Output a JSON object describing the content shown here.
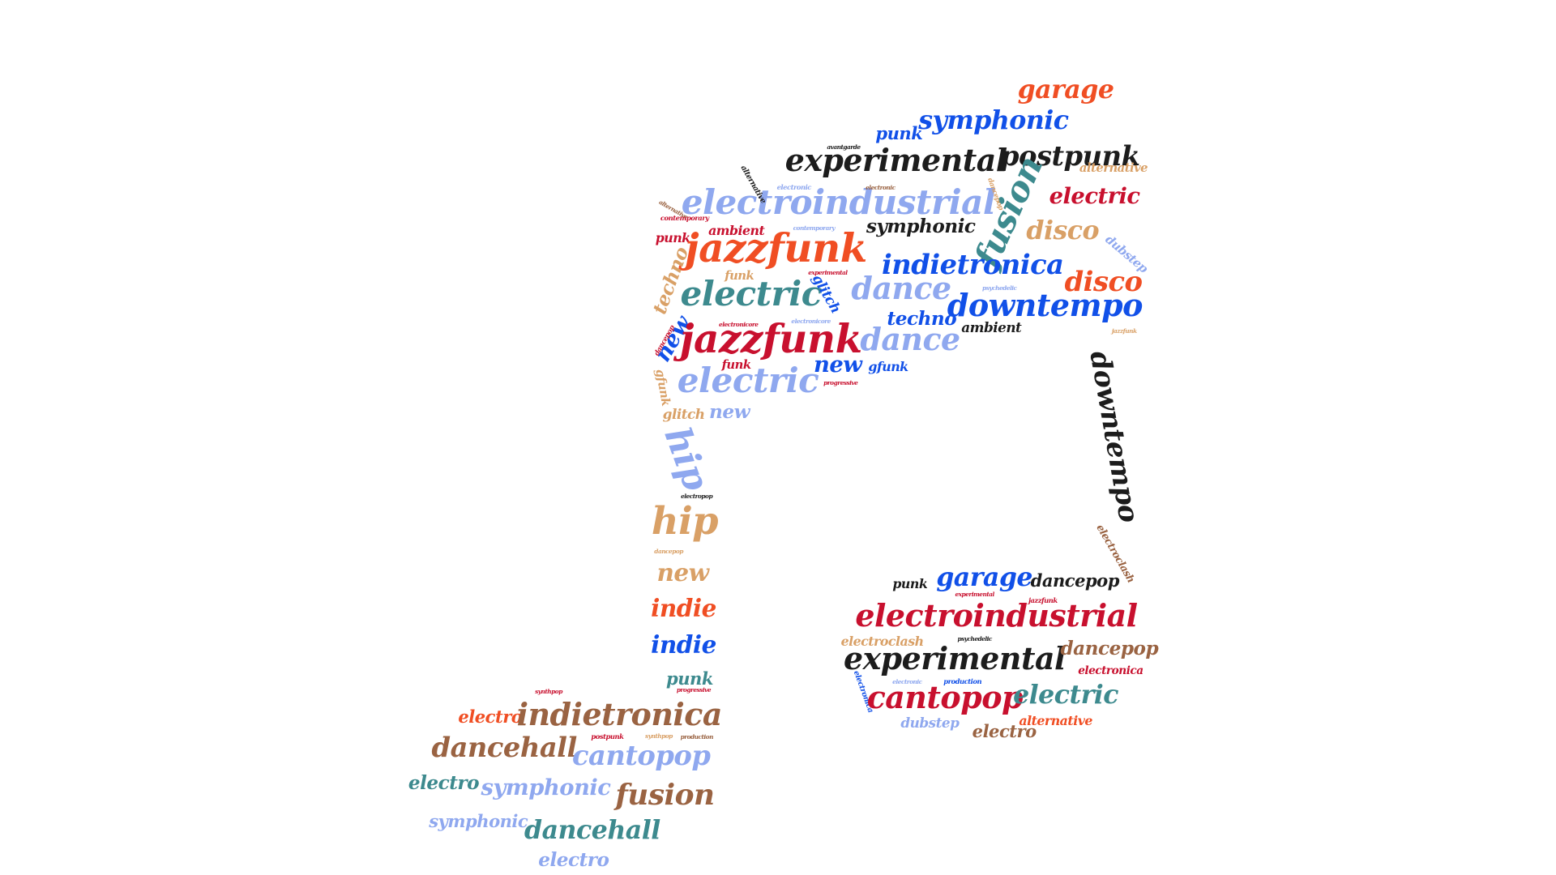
{
  "colors": {
    "red": "#c8102e",
    "orange": "#f04e23",
    "blue": "#1150e8",
    "lightblue": "#8fa8ef",
    "teal": "#3d8a8e",
    "tan": "#d9a066",
    "brown": "#9a6342",
    "black": "#1c1c1c"
  },
  "words": [
    {
      "text": "garage",
      "color": "orange"
    },
    {
      "text": "symphonic",
      "color": "blue"
    },
    {
      "text": "punk",
      "color": "blue"
    },
    {
      "text": "avantgarde",
      "color": "black"
    },
    {
      "text": "postpunk",
      "color": "black"
    },
    {
      "text": "experimental",
      "color": "black"
    },
    {
      "text": "alternative",
      "color": "tan"
    },
    {
      "text": "electric",
      "color": "red"
    },
    {
      "text": "fusion",
      "color": "teal"
    },
    {
      "text": "electroindustrial",
      "color": "lightblue"
    },
    {
      "text": "alternative",
      "color": "black"
    },
    {
      "text": "electronic",
      "color": "lightblue"
    },
    {
      "text": "electronic",
      "color": "brown"
    },
    {
      "text": "dancepop",
      "color": "tan"
    },
    {
      "text": "alternative",
      "color": "brown"
    },
    {
      "text": "contemporary",
      "color": "red"
    },
    {
      "text": "punk",
      "color": "red"
    },
    {
      "text": "ambient",
      "color": "red"
    },
    {
      "text": "contemporary",
      "color": "lightblue"
    },
    {
      "text": "symphonic",
      "color": "black"
    },
    {
      "text": "disco",
      "color": "tan"
    },
    {
      "text": "dubstep",
      "color": "lightblue"
    },
    {
      "text": "jazzfunk",
      "color": "orange"
    },
    {
      "text": "indietronica",
      "color": "blue"
    },
    {
      "text": "techno",
      "color": "tan"
    },
    {
      "text": "funk",
      "color": "tan"
    },
    {
      "text": "experimental",
      "color": "red"
    },
    {
      "text": "electric",
      "color": "teal"
    },
    {
      "text": "glitch",
      "color": "blue"
    },
    {
      "text": "dance",
      "color": "lightblue"
    },
    {
      "text": "disco",
      "color": "orange"
    },
    {
      "text": "psychedelic",
      "color": "lightblue"
    },
    {
      "text": "downtempo",
      "color": "blue"
    },
    {
      "text": "new",
      "color": "blue"
    },
    {
      "text": "dancepop",
      "color": "red"
    },
    {
      "text": "electronicore",
      "color": "red"
    },
    {
      "text": "electronicore",
      "color": "lightblue"
    },
    {
      "text": "techno",
      "color": "blue"
    },
    {
      "text": "ambient",
      "color": "black"
    },
    {
      "text": "jazzfunk",
      "color": "red"
    },
    {
      "text": "dance",
      "color": "lightblue"
    },
    {
      "text": "jazzfunk",
      "color": "tan"
    },
    {
      "text": "downtempo",
      "color": "black"
    },
    {
      "text": "new",
      "color": "blue"
    },
    {
      "text": "gfunk",
      "color": "blue"
    },
    {
      "text": "funk",
      "color": "red"
    },
    {
      "text": "gfunk",
      "color": "tan"
    },
    {
      "text": "electric",
      "color": "lightblue"
    },
    {
      "text": "progressive",
      "color": "red"
    },
    {
      "text": "glitch",
      "color": "tan"
    },
    {
      "text": "new",
      "color": "lightblue"
    },
    {
      "text": "hip",
      "color": "lightblue"
    },
    {
      "text": "electropop",
      "color": "black"
    },
    {
      "text": "hip",
      "color": "tan"
    },
    {
      "text": "dancepop",
      "color": "tan"
    },
    {
      "text": "electroclash",
      "color": "brown"
    },
    {
      "text": "new",
      "color": "tan"
    },
    {
      "text": "punk",
      "color": "black"
    },
    {
      "text": "garage",
      "color": "blue"
    },
    {
      "text": "dancepop",
      "color": "black"
    },
    {
      "text": "indie",
      "color": "orange"
    },
    {
      "text": "experimental",
      "color": "red"
    },
    {
      "text": "jazzfunk",
      "color": "red"
    },
    {
      "text": "electroindustrial",
      "color": "red"
    },
    {
      "text": "indie",
      "color": "blue"
    },
    {
      "text": "electroclash",
      "color": "tan"
    },
    {
      "text": "psychedelic",
      "color": "black"
    },
    {
      "text": "experimental",
      "color": "black"
    },
    {
      "text": "dancepop",
      "color": "brown"
    },
    {
      "text": "electronica",
      "color": "red"
    },
    {
      "text": "punk",
      "color": "teal"
    },
    {
      "text": "synthpop",
      "color": "red"
    },
    {
      "text": "progressive",
      "color": "red"
    },
    {
      "text": "electronica",
      "color": "blue"
    },
    {
      "text": "electronic",
      "color": "lightblue"
    },
    {
      "text": "production",
      "color": "blue"
    },
    {
      "text": "cantopop",
      "color": "red"
    },
    {
      "text": "electric",
      "color": "teal"
    },
    {
      "text": "electro",
      "color": "orange"
    },
    {
      "text": "indietronica",
      "color": "brown"
    },
    {
      "text": "alternative",
      "color": "orange"
    },
    {
      "text": "dubstep",
      "color": "lightblue"
    },
    {
      "text": "electro",
      "color": "brown"
    },
    {
      "text": "postpunk",
      "color": "red"
    },
    {
      "text": "synthpop",
      "color": "tan"
    },
    {
      "text": "production",
      "color": "brown"
    },
    {
      "text": "dancehall",
      "color": "brown"
    },
    {
      "text": "cantopop",
      "color": "lightblue"
    },
    {
      "text": "electro",
      "color": "teal"
    },
    {
      "text": "symphonic",
      "color": "lightblue"
    },
    {
      "text": "fusion",
      "color": "brown"
    },
    {
      "text": "symphonic",
      "color": "lightblue"
    },
    {
      "text": "dancehall",
      "color": "teal"
    },
    {
      "text": "electro",
      "color": "lightblue"
    }
  ]
}
